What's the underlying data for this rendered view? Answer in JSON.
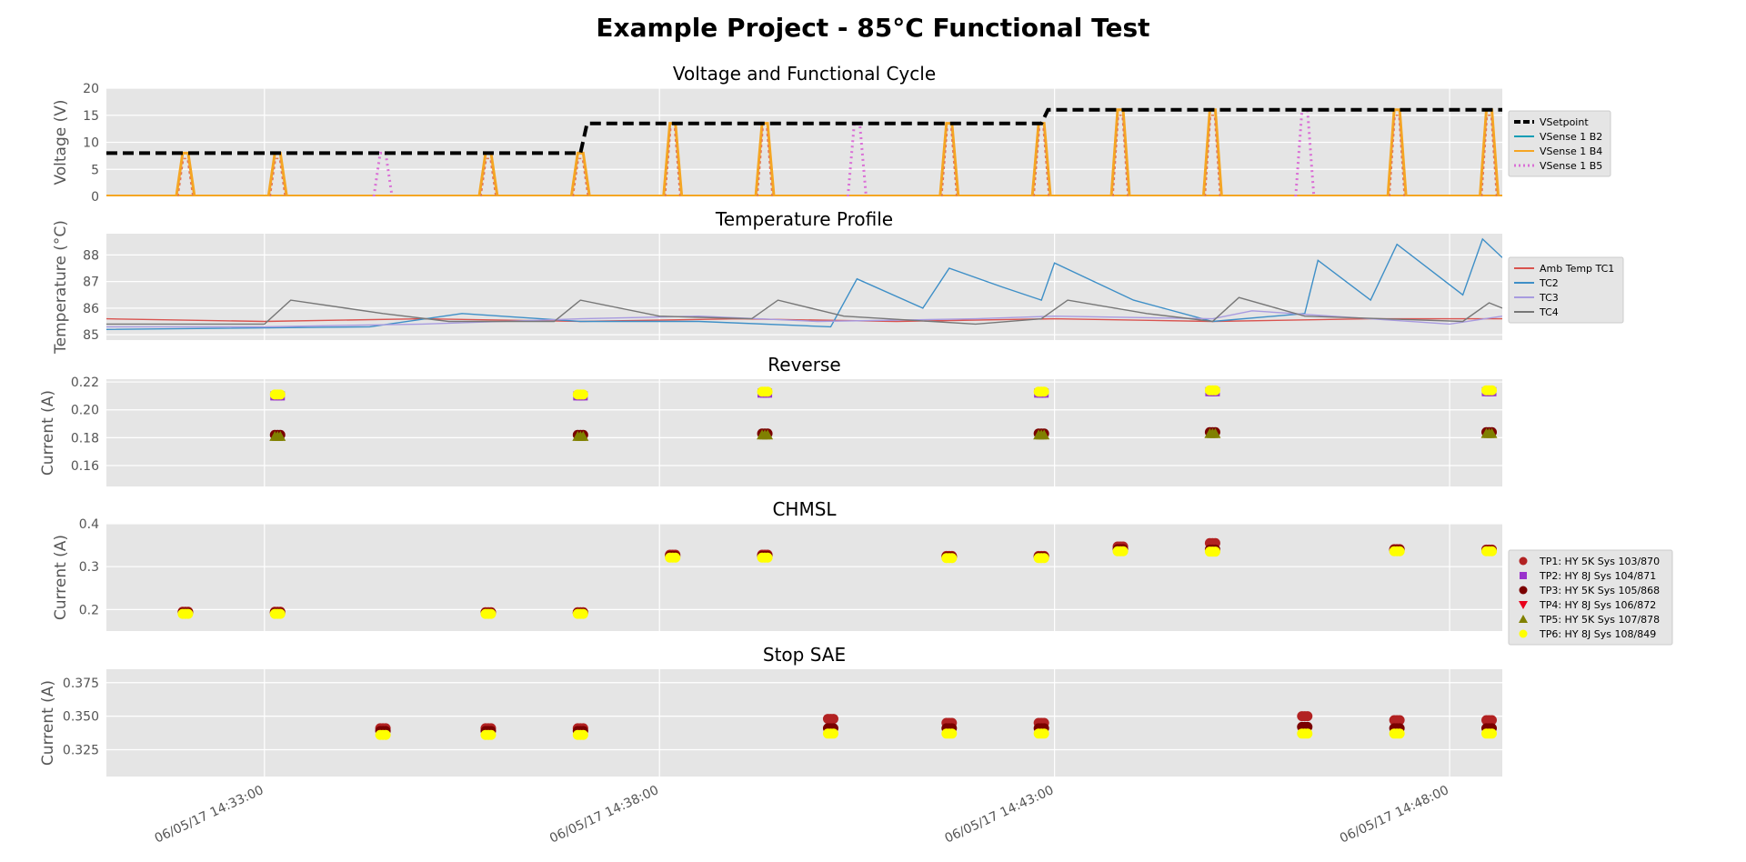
{
  "figure": {
    "title": "Example Project - 85°C Functional Test"
  },
  "x_axis": {
    "range": [
      "2017-06-05T14:31:00",
      "2017-06-05T14:48:40"
    ],
    "ticks": [
      {
        "t": "2017-06-05T14:33:00",
        "label": "06/05/17 14:33:00"
      },
      {
        "t": "2017-06-05T14:38:00",
        "label": "06/05/17 14:38:00"
      },
      {
        "t": "2017-06-05T14:43:00",
        "label": "06/05/17 14:43:00"
      },
      {
        "t": "2017-06-05T14:48:00",
        "label": "06/05/17 14:48:00"
      }
    ]
  },
  "chart_data": [
    {
      "id": "voltage",
      "type": "line",
      "title": "Voltage and Functional Cycle",
      "ylabel": "Voltage (V)",
      "ylim": [
        0,
        20
      ],
      "yticks": [
        0,
        5,
        10,
        15,
        20
      ],
      "grid": true,
      "legend_position": "right",
      "setpoint": [
        {
          "t": "2017-06-05T14:31:00",
          "v": 8
        },
        {
          "t": "2017-06-05T14:37:00",
          "v": 8
        },
        {
          "t": "2017-06-05T14:37:05",
          "v": 13.5
        },
        {
          "t": "2017-06-05T14:42:50",
          "v": 13.5
        },
        {
          "t": "2017-06-05T14:42:55",
          "v": 16
        },
        {
          "t": "2017-06-05T14:48:40",
          "v": 16
        }
      ],
      "pulses": [
        {
          "t": "2017-06-05T14:32:00",
          "v": 8,
          "series": "VSense 1 B4"
        },
        {
          "t": "2017-06-05T14:33:10",
          "v": 8,
          "series": "VSense 1 B4"
        },
        {
          "t": "2017-06-05T14:34:30",
          "v": 8,
          "series": "VSense 1 B5"
        },
        {
          "t": "2017-06-05T14:35:50",
          "v": 8,
          "series": "VSense 1 B4"
        },
        {
          "t": "2017-06-05T14:37:00",
          "v": 8,
          "series": "VSense 1 B4"
        },
        {
          "t": "2017-06-05T14:38:10",
          "v": 13.5,
          "series": "VSense 1 B4"
        },
        {
          "t": "2017-06-05T14:39:20",
          "v": 13.5,
          "series": "VSense 1 B4"
        },
        {
          "t": "2017-06-05T14:40:30",
          "v": 13.5,
          "series": "VSense 1 B5"
        },
        {
          "t": "2017-06-05T14:41:40",
          "v": 13.5,
          "series": "VSense 1 B4"
        },
        {
          "t": "2017-06-05T14:42:50",
          "v": 13.5,
          "series": "VSense 1 B4"
        },
        {
          "t": "2017-06-05T14:43:50",
          "v": 16,
          "series": "VSense 1 B4"
        },
        {
          "t": "2017-06-05T14:45:00",
          "v": 16,
          "series": "VSense 1 B4"
        },
        {
          "t": "2017-06-05T14:46:10",
          "v": 16,
          "series": "VSense 1 B5"
        },
        {
          "t": "2017-06-05T14:47:20",
          "v": 16,
          "series": "VSense 1 B4"
        },
        {
          "t": "2017-06-05T14:48:30",
          "v": 16,
          "series": "VSense 1 B4"
        }
      ],
      "legend": [
        {
          "name": "VSetpoint",
          "color": "#000000",
          "style": "dashed"
        },
        {
          "name": "VSense 1 B2",
          "color": "#0f9db5",
          "style": "solid"
        },
        {
          "name": "VSense 1 B4",
          "color": "#f5a623",
          "style": "solid"
        },
        {
          "name": "VSense 1 B5",
          "color": "#da70d6",
          "style": "dotted"
        }
      ]
    },
    {
      "id": "temperature",
      "type": "line",
      "title": "Temperature Profile",
      "ylabel": "Temperature (°C)",
      "ylim": [
        84.8,
        88.8
      ],
      "yticks": [
        85,
        86,
        87,
        88
      ],
      "grid": true,
      "legend_position": "right",
      "series": [
        {
          "name": "Amb Temp TC1",
          "color": "#d9534f",
          "points": [
            [
              "2017-06-05T14:31:00",
              85.6
            ],
            [
              "2017-06-05T14:33:00",
              85.5
            ],
            [
              "2017-06-05T14:35:00",
              85.6
            ],
            [
              "2017-06-05T14:37:00",
              85.5
            ],
            [
              "2017-06-05T14:39:00",
              85.6
            ],
            [
              "2017-06-05T14:41:00",
              85.5
            ],
            [
              "2017-06-05T14:43:00",
              85.6
            ],
            [
              "2017-06-05T14:45:00",
              85.5
            ],
            [
              "2017-06-05T14:47:00",
              85.6
            ],
            [
              "2017-06-05T14:48:40",
              85.6
            ]
          ]
        },
        {
          "name": "TC2",
          "color": "#3e8fc7",
          "points": [
            [
              "2017-06-05T14:31:00",
              85.2
            ],
            [
              "2017-06-05T14:34:20",
              85.3
            ],
            [
              "2017-06-05T14:35:30",
              85.8
            ],
            [
              "2017-06-05T14:37:00",
              85.5
            ],
            [
              "2017-06-05T14:38:30",
              85.5
            ],
            [
              "2017-06-05T14:40:10",
              85.3
            ],
            [
              "2017-06-05T14:40:30",
              87.1
            ],
            [
              "2017-06-05T14:41:20",
              86.0
            ],
            [
              "2017-06-05T14:41:40",
              87.5
            ],
            [
              "2017-06-05T14:42:20",
              86.8
            ],
            [
              "2017-06-05T14:42:50",
              86.3
            ],
            [
              "2017-06-05T14:43:00",
              87.7
            ],
            [
              "2017-06-05T14:44:00",
              86.3
            ],
            [
              "2017-06-05T14:45:00",
              85.5
            ],
            [
              "2017-06-05T14:46:10",
              85.8
            ],
            [
              "2017-06-05T14:46:20",
              87.8
            ],
            [
              "2017-06-05T14:47:00",
              86.3
            ],
            [
              "2017-06-05T14:47:20",
              88.4
            ],
            [
              "2017-06-05T14:48:10",
              86.5
            ],
            [
              "2017-06-05T14:48:25",
              88.6
            ],
            [
              "2017-06-05T14:48:40",
              87.9
            ]
          ]
        },
        {
          "name": "TC3",
          "color": "#a89be0",
          "points": [
            [
              "2017-06-05T14:31:00",
              85.3
            ],
            [
              "2017-06-05T14:33:00",
              85.3
            ],
            [
              "2017-06-05T14:35:00",
              85.4
            ],
            [
              "2017-06-05T14:37:00",
              85.6
            ],
            [
              "2017-06-05T14:38:30",
              85.7
            ],
            [
              "2017-06-05T14:40:00",
              85.5
            ],
            [
              "2017-06-05T14:42:00",
              85.6
            ],
            [
              "2017-06-05T14:43:00",
              85.7
            ],
            [
              "2017-06-05T14:45:00",
              85.6
            ],
            [
              "2017-06-05T14:45:30",
              85.9
            ],
            [
              "2017-06-05T14:47:00",
              85.6
            ],
            [
              "2017-06-05T14:48:00",
              85.4
            ],
            [
              "2017-06-05T14:48:40",
              85.7
            ]
          ]
        },
        {
          "name": "TC4",
          "color": "#777777",
          "points": [
            [
              "2017-06-05T14:31:00",
              85.4
            ],
            [
              "2017-06-05T14:33:00",
              85.4
            ],
            [
              "2017-06-05T14:33:20",
              86.3
            ],
            [
              "2017-06-05T14:34:30",
              85.8
            ],
            [
              "2017-06-05T14:35:20",
              85.5
            ],
            [
              "2017-06-05T14:36:40",
              85.5
            ],
            [
              "2017-06-05T14:37:00",
              86.3
            ],
            [
              "2017-06-05T14:38:00",
              85.7
            ],
            [
              "2017-06-05T14:39:10",
              85.6
            ],
            [
              "2017-06-05T14:39:30",
              86.3
            ],
            [
              "2017-06-05T14:40:20",
              85.7
            ],
            [
              "2017-06-05T14:42:00",
              85.4
            ],
            [
              "2017-06-05T14:42:50",
              85.6
            ],
            [
              "2017-06-05T14:43:10",
              86.3
            ],
            [
              "2017-06-05T14:44:10",
              85.8
            ],
            [
              "2017-06-05T14:45:00",
              85.5
            ],
            [
              "2017-06-05T14:45:20",
              86.4
            ],
            [
              "2017-06-05T14:46:10",
              85.7
            ],
            [
              "2017-06-05T14:48:10",
              85.5
            ],
            [
              "2017-06-05T14:48:30",
              86.2
            ],
            [
              "2017-06-05T14:48:40",
              86.0
            ]
          ]
        }
      ]
    },
    {
      "id": "reverse",
      "type": "scatter",
      "title": "Reverse",
      "ylabel": "Current (A)",
      "ylim": [
        0.145,
        0.222
      ],
      "yticks": [
        0.16,
        0.18,
        0.2,
        0.22
      ],
      "grid": true,
      "times": [
        "2017-06-05T14:33:10",
        "2017-06-05T14:37:00",
        "2017-06-05T14:39:20",
        "2017-06-05T14:42:50",
        "2017-06-05T14:45:00",
        "2017-06-05T14:48:30"
      ],
      "groups": [
        {
          "series": "TP2",
          "values": [
            0.21,
            0.21,
            0.212,
            0.212,
            0.213,
            0.213
          ]
        },
        {
          "series": "TP6",
          "values": [
            0.211,
            0.211,
            0.213,
            0.213,
            0.214,
            0.214
          ]
        },
        {
          "series": "TP3",
          "values": [
            0.182,
            0.182,
            0.183,
            0.183,
            0.184,
            0.184
          ]
        },
        {
          "series": "TP5",
          "values": [
            0.181,
            0.181,
            0.182,
            0.182,
            0.183,
            0.183
          ]
        }
      ]
    },
    {
      "id": "chmsl",
      "type": "scatter",
      "title": "CHMSL",
      "ylabel": "Current (A)",
      "ylim": [
        0.15,
        0.4
      ],
      "yticks": [
        0.2,
        0.3,
        0.4
      ],
      "grid": true,
      "legend_position": "right",
      "times": [
        "2017-06-05T14:32:00",
        "2017-06-05T14:33:10",
        "2017-06-05T14:35:50",
        "2017-06-05T14:37:00",
        "2017-06-05T14:38:10",
        "2017-06-05T14:39:20",
        "2017-06-05T14:41:40",
        "2017-06-05T14:42:50",
        "2017-06-05T14:43:50",
        "2017-06-05T14:45:00",
        "2017-06-05T14:47:20",
        "2017-06-05T14:48:30"
      ],
      "groups": [
        {
          "series": "TP1",
          "values": [
            0.195,
            0.195,
            0.194,
            0.194,
            0.328,
            0.328,
            0.325,
            0.325,
            0.347,
            0.355,
            0.341,
            0.34
          ]
        },
        {
          "series": "TP3",
          "values": [
            0.193,
            0.193,
            0.192,
            0.192,
            0.325,
            0.325,
            0.323,
            0.323,
            0.341,
            0.34,
            0.339,
            0.338
          ]
        },
        {
          "series": "TP6",
          "values": [
            0.19,
            0.19,
            0.19,
            0.19,
            0.321,
            0.321,
            0.32,
            0.32,
            0.336,
            0.335,
            0.336,
            0.336
          ]
        }
      ],
      "legend": [
        {
          "name": "TP1: HY 5K Sys 103/870",
          "color": "#b22222",
          "marker": "circle"
        },
        {
          "name": "TP2: HY 8J Sys 104/871",
          "color": "#9932cc",
          "marker": "square"
        },
        {
          "name": "TP3: HY 5K Sys 105/868",
          "color": "#7a0000",
          "marker": "circle"
        },
        {
          "name": "TP4: HY 8J Sys 106/872",
          "color": "#e8001c",
          "marker": "triangle-down"
        },
        {
          "name": "TP5: HY 5K Sys 107/878",
          "color": "#808000",
          "marker": "triangle-up"
        },
        {
          "name": "TP6: HY 8J Sys 108/849",
          "color": "#ffff00",
          "marker": "circle"
        }
      ]
    },
    {
      "id": "stop",
      "type": "scatter",
      "title": "Stop SAE",
      "ylabel": "Current (A)",
      "ylim": [
        0.305,
        0.385
      ],
      "yticks": [
        0.325,
        0.35,
        0.375
      ],
      "grid": true,
      "times": [
        "2017-06-05T14:34:30",
        "2017-06-05T14:35:50",
        "2017-06-05T14:37:00",
        "2017-06-05T14:40:10",
        "2017-06-05T14:41:40",
        "2017-06-05T14:42:50",
        "2017-06-05T14:46:10",
        "2017-06-05T14:47:20",
        "2017-06-05T14:48:30"
      ],
      "groups": [
        {
          "series": "TP1",
          "values": [
            0.341,
            0.341,
            0.341,
            0.348,
            0.345,
            0.345,
            0.35,
            0.347,
            0.347
          ]
        },
        {
          "series": "TP3",
          "values": [
            0.339,
            0.339,
            0.339,
            0.341,
            0.341,
            0.341,
            0.342,
            0.341,
            0.341
          ]
        },
        {
          "series": "TP6",
          "values": [
            0.336,
            0.336,
            0.336,
            0.337,
            0.337,
            0.337,
            0.337,
            0.337,
            0.337
          ]
        }
      ]
    }
  ]
}
